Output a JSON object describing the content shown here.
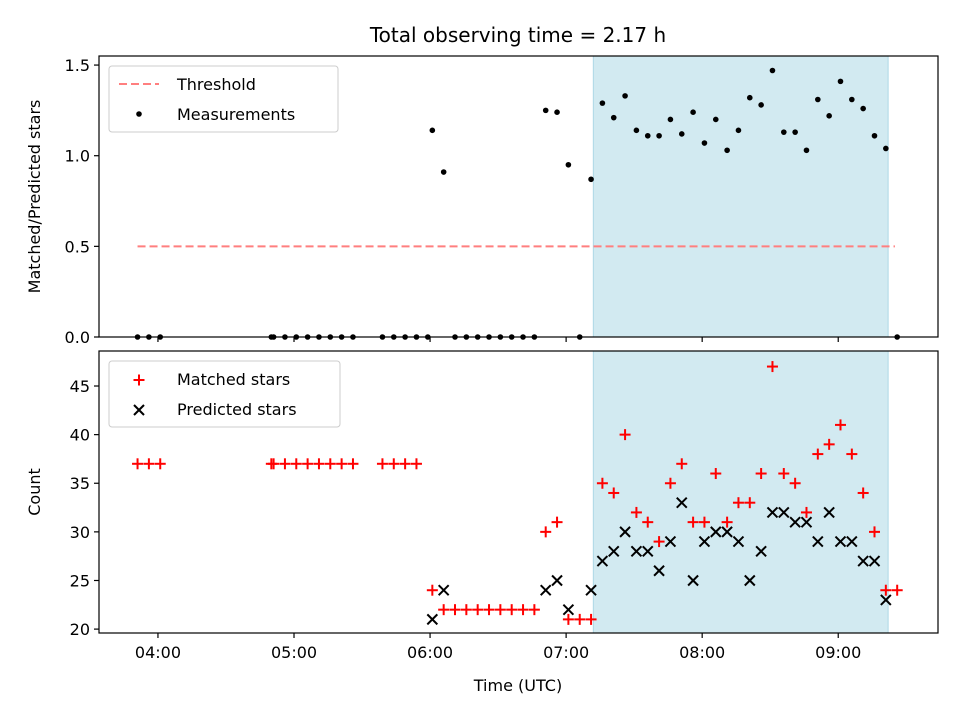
{
  "figure": {
    "title": "Total observing time = 2.17 h",
    "xlabel": "Time (UTC)"
  },
  "colors": {
    "threshold": "#ff7f7f",
    "measurements": "#000000",
    "matched": "#ff0000",
    "predicted": "#000000",
    "shaded": "#add8e6"
  },
  "chart_data": [
    {
      "type": "scatter",
      "panel": "top",
      "ylabel": "Matched/Predicted stars",
      "xlim": [
        "03:34",
        "09:44"
      ],
      "ylim": [
        0,
        1.55
      ],
      "x_ticks": [
        "04:00",
        "05:00",
        "06:00",
        "07:00",
        "08:00",
        "09:00"
      ],
      "y_ticks": [
        "0.0",
        "0.5",
        "1.0",
        "1.5"
      ],
      "shaded_span": [
        "07:12",
        "09:22"
      ],
      "threshold": {
        "name": "Threshold",
        "value": 0.5,
        "x_range": [
          "03:51",
          "09:25"
        ],
        "style": "dashed"
      },
      "series": [
        {
          "name": "Measurements",
          "points": [
            [
              "03:51",
              0
            ],
            [
              "03:56",
              0
            ],
            [
              "04:01",
              0
            ],
            [
              "04:50",
              0
            ],
            [
              "04:51",
              0
            ],
            [
              "04:56",
              0
            ],
            [
              "05:01",
              0
            ],
            [
              "05:06",
              0
            ],
            [
              "05:11",
              0
            ],
            [
              "05:16",
              0
            ],
            [
              "05:21",
              0
            ],
            [
              "05:26",
              0
            ],
            [
              "05:39",
              0
            ],
            [
              "05:44",
              0
            ],
            [
              "05:49",
              0
            ],
            [
              "05:54",
              0
            ],
            [
              "05:59",
              0
            ],
            [
              "06:01",
              1.14
            ],
            [
              "06:06",
              0.91
            ],
            [
              "06:11",
              0
            ],
            [
              "06:16",
              0
            ],
            [
              "06:21",
              0
            ],
            [
              "06:26",
              0
            ],
            [
              "06:31",
              0
            ],
            [
              "06:36",
              0
            ],
            [
              "06:41",
              0
            ],
            [
              "06:46",
              0
            ],
            [
              "06:51",
              1.25
            ],
            [
              "06:56",
              1.24
            ],
            [
              "07:01",
              0.95
            ],
            [
              "07:06",
              0
            ],
            [
              "07:11",
              0.87
            ],
            [
              "07:16",
              1.29
            ],
            [
              "07:21",
              1.21
            ],
            [
              "07:26",
              1.33
            ],
            [
              "07:31",
              1.14
            ],
            [
              "07:36",
              1.11
            ],
            [
              "07:41",
              1.11
            ],
            [
              "07:46",
              1.2
            ],
            [
              "07:51",
              1.12
            ],
            [
              "07:56",
              1.24
            ],
            [
              "08:01",
              1.07
            ],
            [
              "08:06",
              1.2
            ],
            [
              "08:11",
              1.03
            ],
            [
              "08:16",
              1.14
            ],
            [
              "08:21",
              1.32
            ],
            [
              "08:26",
              1.28
            ],
            [
              "08:31",
              1.47
            ],
            [
              "08:36",
              1.13
            ],
            [
              "08:41",
              1.13
            ],
            [
              "08:46",
              1.03
            ],
            [
              "08:51",
              1.31
            ],
            [
              "08:56",
              1.22
            ],
            [
              "09:01",
              1.41
            ],
            [
              "09:06",
              1.31
            ],
            [
              "09:11",
              1.26
            ],
            [
              "09:16",
              1.11
            ],
            [
              "09:21",
              1.04
            ],
            [
              "09:26",
              0
            ]
          ]
        }
      ]
    },
    {
      "type": "scatter",
      "panel": "bottom",
      "ylabel": "Count",
      "xlim": [
        "03:34",
        "09:44"
      ],
      "ylim": [
        19.6,
        48.6
      ],
      "x_ticks": [
        "04:00",
        "05:00",
        "06:00",
        "07:00",
        "08:00",
        "09:00"
      ],
      "y_ticks": [
        "20",
        "25",
        "30",
        "35",
        "40",
        "45"
      ],
      "shaded_span": [
        "07:12",
        "09:22"
      ],
      "series": [
        {
          "name": "Matched stars",
          "marker": "plus",
          "points": [
            [
              "03:51",
              37
            ],
            [
              "03:56",
              37
            ],
            [
              "04:01",
              37
            ],
            [
              "04:50",
              37
            ],
            [
              "04:51",
              37
            ],
            [
              "04:56",
              37
            ],
            [
              "05:01",
              37
            ],
            [
              "05:06",
              37
            ],
            [
              "05:11",
              37
            ],
            [
              "05:16",
              37
            ],
            [
              "05:21",
              37
            ],
            [
              "05:26",
              37
            ],
            [
              "05:39",
              37
            ],
            [
              "05:44",
              37
            ],
            [
              "05:49",
              37
            ],
            [
              "05:54",
              37
            ],
            [
              "06:01",
              24
            ],
            [
              "06:06",
              22
            ],
            [
              "06:11",
              22
            ],
            [
              "06:16",
              22
            ],
            [
              "06:21",
              22
            ],
            [
              "06:26",
              22
            ],
            [
              "06:31",
              22
            ],
            [
              "06:36",
              22
            ],
            [
              "06:41",
              22
            ],
            [
              "06:46",
              22
            ],
            [
              "06:51",
              30
            ],
            [
              "06:56",
              31
            ],
            [
              "07:01",
              21
            ],
            [
              "07:06",
              21
            ],
            [
              "07:11",
              21
            ],
            [
              "07:16",
              35
            ],
            [
              "07:21",
              34
            ],
            [
              "07:26",
              40
            ],
            [
              "07:31",
              32
            ],
            [
              "07:36",
              31
            ],
            [
              "07:41",
              29
            ],
            [
              "07:46",
              35
            ],
            [
              "07:51",
              37
            ],
            [
              "07:56",
              31
            ],
            [
              "08:01",
              31
            ],
            [
              "08:06",
              36
            ],
            [
              "08:11",
              31
            ],
            [
              "08:16",
              33
            ],
            [
              "08:21",
              33
            ],
            [
              "08:26",
              36
            ],
            [
              "08:31",
              47
            ],
            [
              "08:36",
              36
            ],
            [
              "08:41",
              35
            ],
            [
              "08:46",
              32
            ],
            [
              "08:51",
              38
            ],
            [
              "08:56",
              39
            ],
            [
              "09:01",
              41
            ],
            [
              "09:06",
              38
            ],
            [
              "09:11",
              34
            ],
            [
              "09:16",
              30
            ],
            [
              "09:21",
              24
            ],
            [
              "09:26",
              24
            ]
          ]
        },
        {
          "name": "Predicted stars",
          "marker": "x",
          "points": [
            [
              "06:01",
              21
            ],
            [
              "06:06",
              24
            ],
            [
              "06:51",
              24
            ],
            [
              "06:56",
              25
            ],
            [
              "07:01",
              22
            ],
            [
              "07:11",
              24
            ],
            [
              "07:16",
              27
            ],
            [
              "07:21",
              28
            ],
            [
              "07:26",
              30
            ],
            [
              "07:31",
              28
            ],
            [
              "07:36",
              28
            ],
            [
              "07:41",
              26
            ],
            [
              "07:46",
              29
            ],
            [
              "07:51",
              33
            ],
            [
              "07:56",
              25
            ],
            [
              "08:01",
              29
            ],
            [
              "08:06",
              30
            ],
            [
              "08:11",
              30
            ],
            [
              "08:16",
              29
            ],
            [
              "08:21",
              25
            ],
            [
              "08:26",
              28
            ],
            [
              "08:31",
              32
            ],
            [
              "08:36",
              32
            ],
            [
              "08:41",
              31
            ],
            [
              "08:46",
              31
            ],
            [
              "08:51",
              29
            ],
            [
              "08:56",
              32
            ],
            [
              "09:01",
              29
            ],
            [
              "09:06",
              29
            ],
            [
              "09:11",
              27
            ],
            [
              "09:16",
              27
            ],
            [
              "09:21",
              23
            ]
          ]
        }
      ]
    }
  ]
}
